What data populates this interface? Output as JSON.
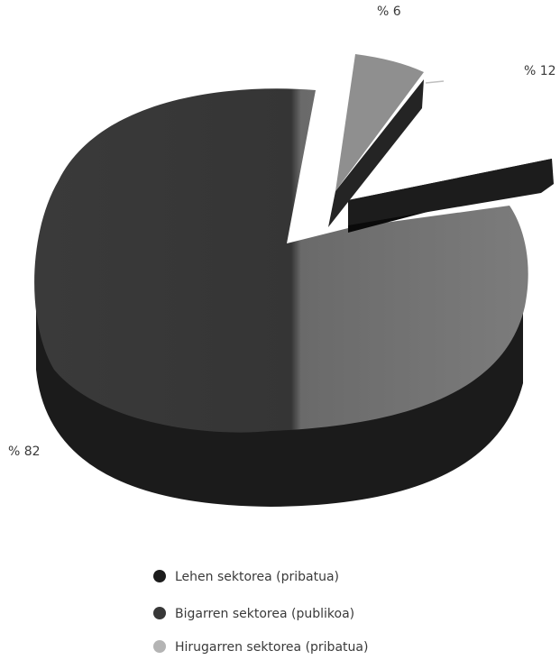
{
  "chart_data": {
    "type": "pie",
    "title": "",
    "series": [
      {
        "name": "Lehen sektorea (pribatua)",
        "value": 12,
        "label": "% 12",
        "color": "#1c1c1c",
        "side": "#0a0a0a"
      },
      {
        "name": "Bigarren sektorea (publikoa)",
        "value": 82,
        "label": "% 82",
        "color": "#383838",
        "side": "#1e1e1e"
      },
      {
        "name": "Hirugarren sektorea (pribatua)",
        "value": 6,
        "label": "% 6",
        "color": "#8f8f8f",
        "side": "#262626"
      }
    ],
    "legend_position": "bottom-center",
    "style": "3d-exploded"
  }
}
